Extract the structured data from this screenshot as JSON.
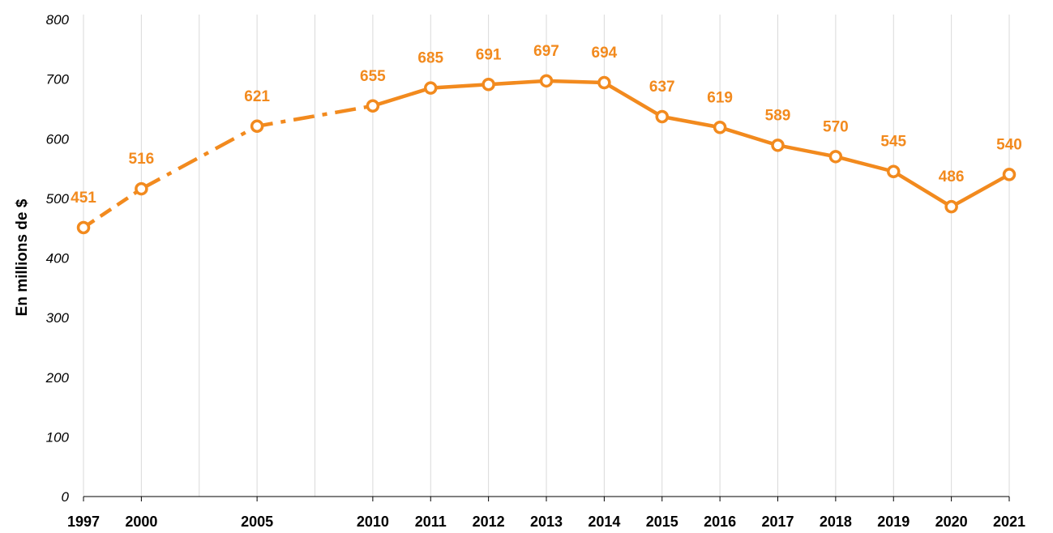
{
  "chart_data": {
    "type": "line",
    "ylabel": "En millions de $",
    "xlabel": "",
    "ylim": [
      0,
      800
    ],
    "yticks": [
      "0",
      "100",
      "200",
      "300",
      "400",
      "500",
      "600",
      "700",
      "800"
    ],
    "x": [
      "1997",
      "2000",
      "2005",
      "2010",
      "2011",
      "2012",
      "2013",
      "2014",
      "2015",
      "2016",
      "2017",
      "2018",
      "2019",
      "2020",
      "2021"
    ],
    "xlabels_shown": [
      "1997",
      "2000",
      "2005",
      "2010",
      "2011",
      "2012",
      "2013",
      "2014",
      "2015",
      "2016",
      "2017",
      "2018",
      "2019",
      "2020",
      "2021"
    ],
    "values": [
      451,
      516,
      621,
      655,
      685,
      691,
      697,
      694,
      637,
      619,
      589,
      570,
      545,
      486,
      540
    ],
    "value_labels": [
      "451",
      "516",
      "621",
      "655",
      "685",
      "691",
      "697",
      "694",
      "637",
      "619",
      "589",
      "570",
      "545",
      "486",
      "540"
    ],
    "line_styles": {
      "1997-2000": "dashed",
      "2000-2010": "dash-dot",
      "2010-2021": "solid"
    },
    "grid": "vertical",
    "legend": "none",
    "color": "#F28A1E"
  }
}
